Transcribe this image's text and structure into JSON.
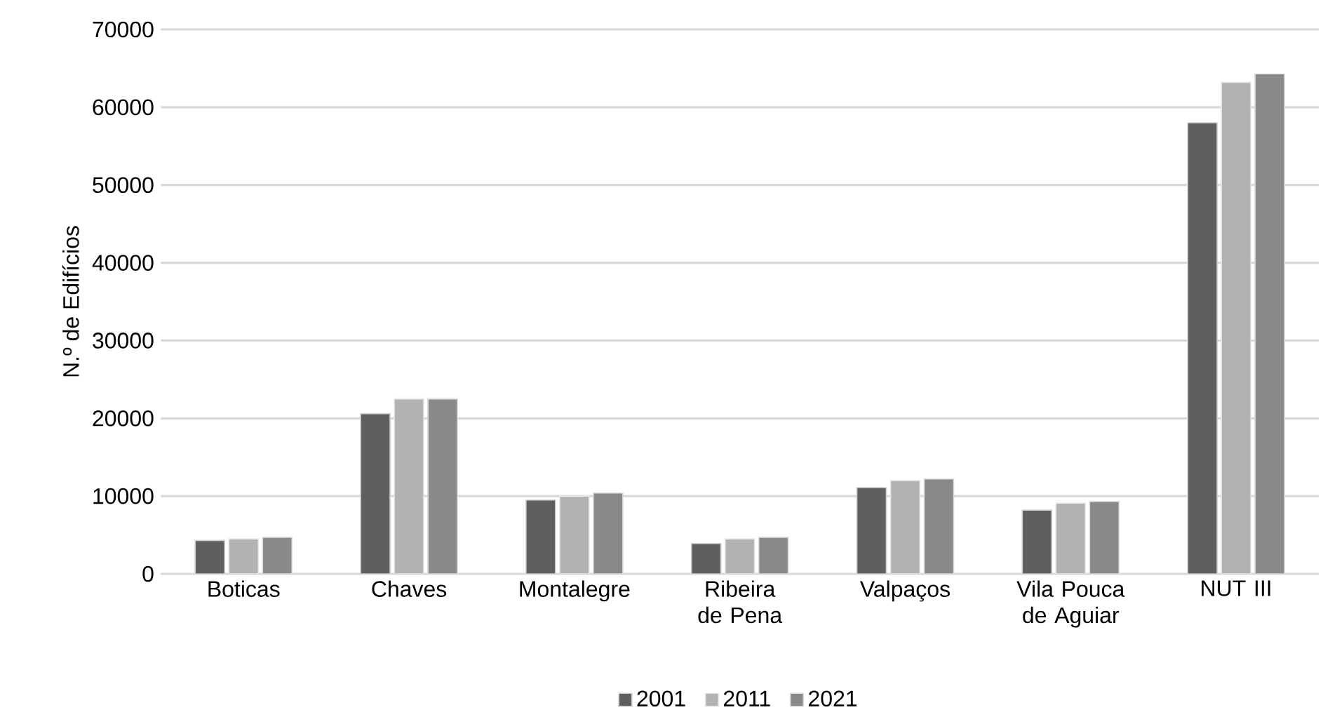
{
  "chart_data": {
    "type": "bar",
    "ylabel": "N.º de Edifícios",
    "categories": [
      "Boticas",
      "Chaves",
      "Montalegre",
      "Ribeira de Pena",
      "Valpaços",
      "Vila Pouca de Aguiar",
      "NUT III"
    ],
    "series": [
      {
        "name": "2001",
        "color": "#5f5f5f",
        "values": [
          4300,
          20600,
          9500,
          3900,
          11100,
          8200,
          58000
        ]
      },
      {
        "name": "2011",
        "color": "#b2b2b2",
        "values": [
          4500,
          22500,
          10000,
          4500,
          12000,
          9100,
          63200
        ]
      },
      {
        "name": "2021",
        "color": "#898989",
        "values": [
          4700,
          22500,
          10400,
          4700,
          12200,
          9300,
          64300
        ]
      }
    ],
    "ylim": [
      0,
      70000
    ],
    "yticks": [
      0,
      10000,
      20000,
      30000,
      40000,
      50000,
      60000,
      70000
    ],
    "grid": "y",
    "legend": "bottom"
  }
}
